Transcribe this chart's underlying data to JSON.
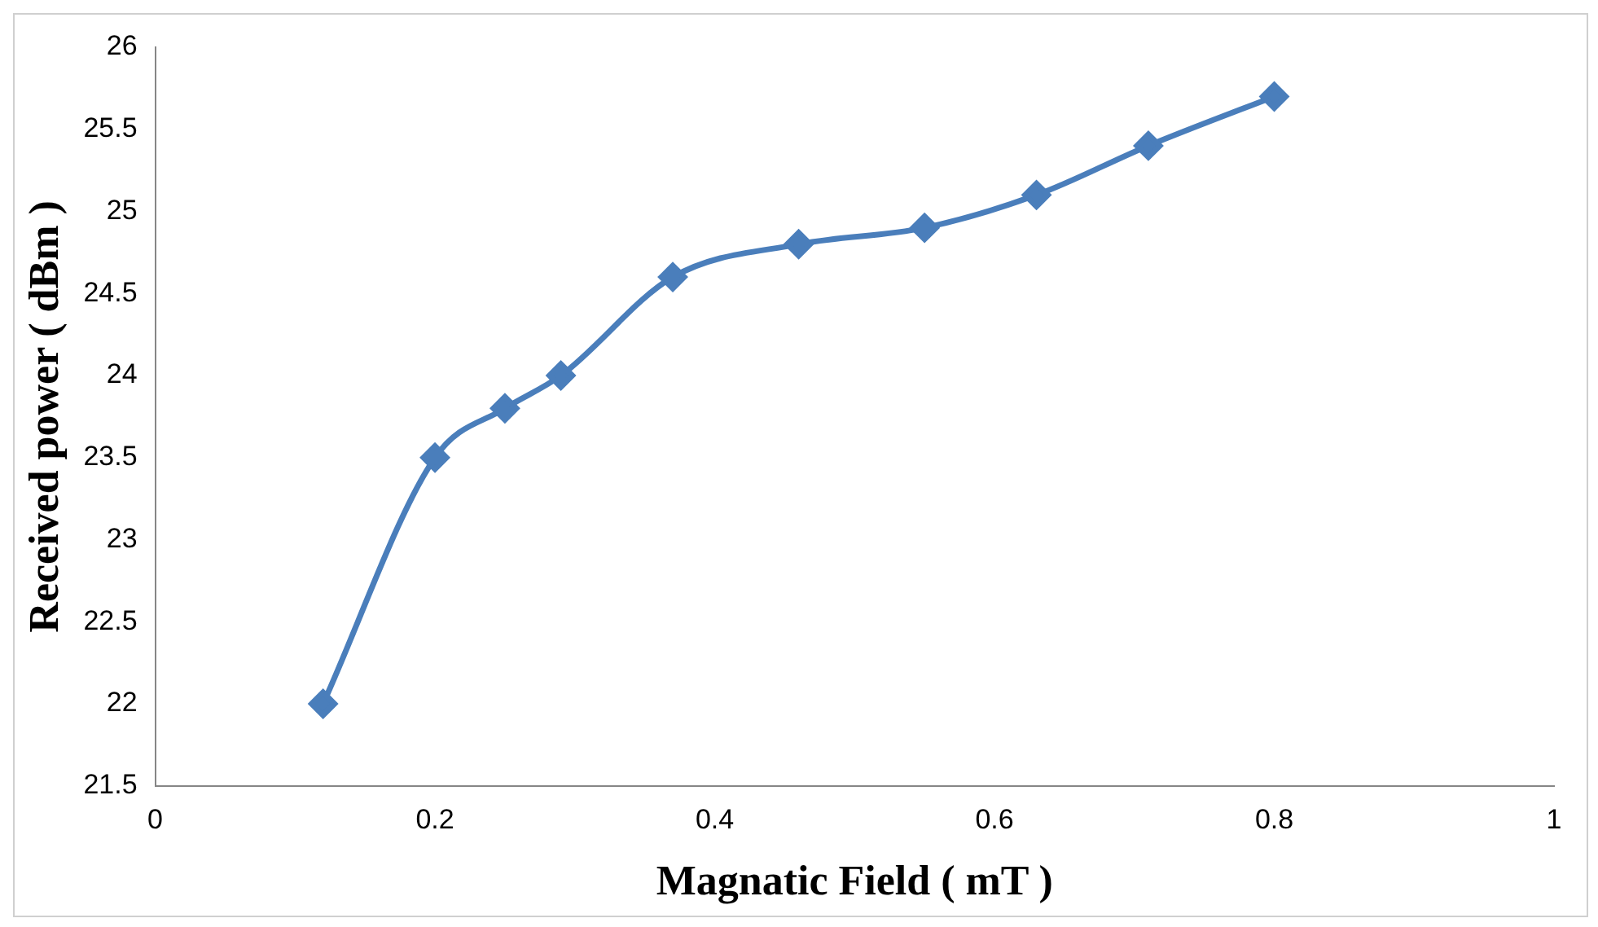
{
  "chart_data": {
    "type": "line",
    "xlabel": "Magnatic Field ( mT )",
    "ylabel": "Received power ( dBm )",
    "x": [
      0.12,
      0.2,
      0.25,
      0.29,
      0.37,
      0.46,
      0.55,
      0.63,
      0.71,
      0.8
    ],
    "series": [
      {
        "color": "#4a7ebb",
        "values": [
          22,
          23.5,
          23.8,
          24,
          24.6,
          24.8,
          24.9,
          25.1,
          25.4,
          25.7
        ]
      }
    ],
    "xlim": [
      0,
      1
    ],
    "xticks": [
      0,
      0.2,
      0.4,
      0.6,
      0.8,
      1
    ],
    "ylim": [
      21.5,
      26
    ],
    "yticks": [
      21.5,
      22,
      22.5,
      23,
      23.5,
      24,
      24.5,
      25,
      25.5,
      26
    ],
    "grid": false,
    "legend": false,
    "marker": "diamond",
    "line_style": "solid"
  }
}
